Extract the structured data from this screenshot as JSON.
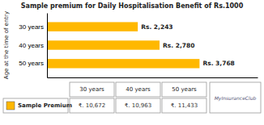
{
  "chart_data": {
    "type": "bar",
    "orientation": "horizontal",
    "title": "Sample premium for Daily Hospitalisation Benefit of Rs.1000",
    "ylabel": "Age at the time of entry",
    "categories": [
      "50 years",
      "40 years",
      "30 years"
    ],
    "values": [
      3768,
      2780,
      2243
    ],
    "value_labels": [
      "Rs. 3,768",
      "Rs. 2,780",
      "Rs. 2,243"
    ],
    "data_labels": true,
    "color": "#FFB800",
    "xlim": [
      0,
      5200
    ],
    "xticks": [],
    "tick_labels": "y",
    "grid": false,
    "table": {
      "columns": [
        "30 years",
        "40 years",
        "50 years"
      ],
      "row_label": "Sample Premium",
      "values": [
        "₹. 10,672",
        "₹. 10,963",
        "₹. 11,433"
      ]
    },
    "annotations": [
      "MyInsuranceClub"
    ]
  }
}
